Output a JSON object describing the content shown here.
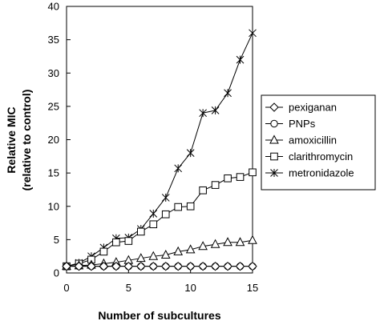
{
  "chart_data": {
    "type": "line",
    "title": "",
    "xlabel": "Number of subcultures",
    "ylabel_line1": "Relative MIC",
    "ylabel_line2": "(relative to control)",
    "xlim": [
      0,
      15
    ],
    "ylim": [
      0,
      40
    ],
    "x_ticks": [
      0,
      5,
      10,
      15
    ],
    "y_ticks": [
      0,
      5,
      10,
      15,
      20,
      25,
      30,
      35,
      40
    ],
    "grid": false,
    "legend_position": "right",
    "x": [
      0,
      1,
      2,
      3,
      4,
      5,
      6,
      7,
      8,
      9,
      10,
      11,
      12,
      13,
      14,
      15
    ],
    "series": [
      {
        "name": "pexiganan",
        "marker": "diamond",
        "values": [
          1,
          1,
          1,
          1,
          1,
          1,
          1,
          1,
          1,
          1,
          1,
          1,
          1,
          1,
          1,
          1
        ]
      },
      {
        "name": "PNPs",
        "marker": "circle",
        "values": [
          1,
          1,
          1,
          1,
          1,
          1,
          1,
          1,
          1,
          1,
          1,
          1,
          1,
          1,
          1,
          1
        ]
      },
      {
        "name": "amoxicillin",
        "marker": "triangle",
        "values": [
          1,
          1.1,
          1.2,
          1.4,
          1.6,
          1.9,
          2.2,
          2.5,
          2.7,
          3.2,
          3.5,
          4.0,
          4.3,
          4.6,
          4.6,
          4.9
        ]
      },
      {
        "name": "clarithromycin",
        "marker": "square",
        "values": [
          1,
          1.4,
          2,
          3.2,
          4.6,
          4.8,
          6.2,
          7.3,
          8.8,
          9.9,
          10.0,
          12.4,
          13.2,
          14.2,
          14.4,
          15.1
        ]
      },
      {
        "name": "metronidazole",
        "marker": "star",
        "values": [
          1,
          1.5,
          2.5,
          3.8,
          5.2,
          5.3,
          6.6,
          8.9,
          11.3,
          15.7,
          18.0,
          24.0,
          24.4,
          27.0,
          32.0,
          36.0
        ]
      }
    ]
  }
}
